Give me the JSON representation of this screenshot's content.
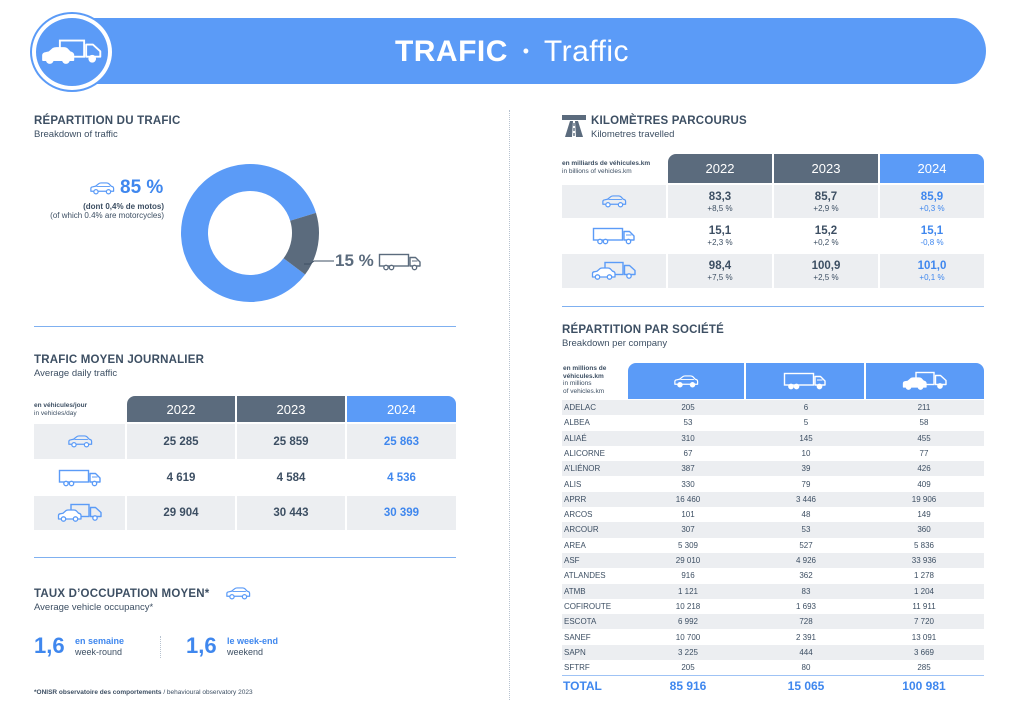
{
  "banner": {
    "title_bold": "TRAFIC",
    "separator": "•",
    "title_light": "Traffic",
    "icon": "car-and-truck-icon"
  },
  "breakdown": {
    "title": "RÉPARTITION DU TRAFIC",
    "subtitle": "Breakdown of traffic",
    "light_pct": "85 %",
    "light_note_fr": "(dont 0,4% de motos)",
    "light_note_en": "(of which 0.4% are motorcycles)",
    "heavy_pct": "15 %",
    "colors": {
      "light": "#5b9bf7",
      "heavy": "#5b6b7d"
    }
  },
  "chart_data": {
    "type": "pie",
    "categories": [
      "light vehicles",
      "heavy vehicles"
    ],
    "values": [
      85,
      15
    ],
    "donut": true
  },
  "daily": {
    "title": "TRAFIC MOYEN JOURNALIER",
    "subtitle": "Average daily traffic",
    "unit_fr": "en véhicules/jour",
    "unit_en": "in vehicles/day",
    "years": [
      "2022",
      "2023",
      "2024"
    ],
    "rows": [
      {
        "icon": "car-icon",
        "values": [
          "25 285",
          "25 859",
          "25 863"
        ]
      },
      {
        "icon": "truck-icon",
        "values": [
          "4 619",
          "4 584",
          "4 536"
        ]
      },
      {
        "icon": "car-and-truck-icon",
        "values": [
          "29 904",
          "30 443",
          "30 399"
        ]
      }
    ]
  },
  "occupancy": {
    "title": "TAUX D’OCCUPATION MOYEN*",
    "subtitle": "Average vehicle occupancy*",
    "weekday_value": "1,6",
    "weekday_fr": "en semaine",
    "weekday_en": "week-round",
    "weekend_value": "1,6",
    "weekend_fr": "le week-end",
    "weekend_en": "weekend",
    "footnote_bold": "*ONISR observatoire des comportements",
    "footnote_rest": " / behavioural observatory 2023"
  },
  "km": {
    "title": "KILOMÈTRES PARCOURUS",
    "subtitle": "Kilometres travelled",
    "unit_fr": "en milliards de véhicules.km",
    "unit_en": "in billions of vehicles.km",
    "years": [
      "2022",
      "2023",
      "2024"
    ],
    "rows": [
      {
        "icon": "car-icon",
        "values": [
          "83,3",
          "85,7",
          "85,9"
        ],
        "changes": [
          "+8,5 %",
          "+2,9 %",
          "+0,3 %"
        ]
      },
      {
        "icon": "truck-icon",
        "values": [
          "15,1",
          "15,2",
          "15,1"
        ],
        "changes": [
          "+2,3 %",
          "+0,2 %",
          "-0,8 %"
        ]
      },
      {
        "icon": "car-and-truck-icon",
        "values": [
          "98,4",
          "100,9",
          "101,0"
        ],
        "changes": [
          "+7,5 %",
          "+2,5 %",
          "+0,1 %"
        ]
      }
    ]
  },
  "company": {
    "title": "RÉPARTITION PAR SOCIÉTÉ",
    "subtitle": "Breakdown per company",
    "unit_fr_1": "en millions de",
    "unit_fr_2": "véhicules.km",
    "unit_en_1": "in millions",
    "unit_en_2": "of vehicles.km",
    "rows": [
      [
        "ADELAC",
        "205",
        "6",
        "211"
      ],
      [
        "ALBEA",
        "53",
        "5",
        "58"
      ],
      [
        "ALIAÉ",
        "310",
        "145",
        "455"
      ],
      [
        "ALICORNE",
        "67",
        "10",
        "77"
      ],
      [
        "A’LIÉNOR",
        "387",
        "39",
        "426"
      ],
      [
        "ALIS",
        "330",
        "79",
        "409"
      ],
      [
        "APRR",
        "16 460",
        "3 446",
        "19 906"
      ],
      [
        "ARCOS",
        "101",
        "48",
        "149"
      ],
      [
        "ARCOUR",
        "307",
        "53",
        "360"
      ],
      [
        "AREA",
        "5 309",
        "527",
        "5 836"
      ],
      [
        "ASF",
        "29 010",
        "4 926",
        "33 936"
      ],
      [
        "ATLANDES",
        "916",
        "362",
        "1 278"
      ],
      [
        "ATMB",
        "1 121",
        "83",
        "1 204"
      ],
      [
        "COFIROUTE",
        "10 218",
        "1 693",
        "11 911"
      ],
      [
        "ESCOTA",
        "6 992",
        "728",
        "7 720"
      ],
      [
        "SANEF",
        "10 700",
        "2 391",
        "13 091"
      ],
      [
        "SAPN",
        "3 225",
        "444",
        "3 669"
      ],
      [
        "SFTRF",
        "205",
        "80",
        "285"
      ]
    ],
    "total_label": "TOTAL",
    "totals": [
      "85 916",
      "15 065",
      "100 981"
    ]
  }
}
